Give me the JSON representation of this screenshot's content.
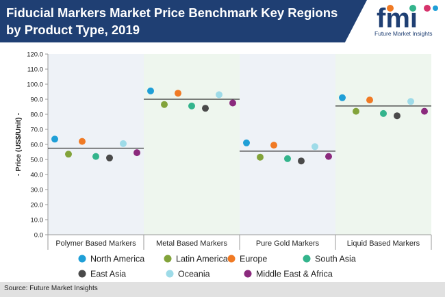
{
  "header": {
    "title": "Fiducial Markers Market Price Benchmark Key Regions by Product Type, 2019",
    "logo_text": "fmi",
    "logo_subtitle": "Future Market Insights",
    "band_color": "#1f3f73"
  },
  "footer": {
    "source": "Source: Future Market Insights"
  },
  "chart_data": {
    "type": "scatter",
    "title": "Fiducial Markers Market Price Benchmark Key Regions by Product Type, 2019",
    "ylabel": "- Price (US$/Unit) -",
    "ylim": [
      0,
      120
    ],
    "yticks": [
      "0.0",
      "10.0",
      "20.0",
      "30.0",
      "40.0",
      "50.0",
      "60.0",
      "70.0",
      "80.0",
      "90.0",
      "100.0",
      "110.0",
      "120.0"
    ],
    "categories": [
      "Polymer Based Markers",
      "Metal Based Markers",
      "Pure Gold Markers",
      "Liquid Based Markers"
    ],
    "panel_colors": [
      "#eef2f7",
      "#eef6ee"
    ],
    "averages": [
      57.5,
      90.0,
      55.5,
      85.5
    ],
    "legend_position": "bottom",
    "grid": false,
    "series": [
      {
        "name": "North America",
        "color": "#1f9fd7",
        "values": [
          63.5,
          95.5,
          61.0,
          91.0
        ]
      },
      {
        "name": "Latin America",
        "color": "#82a33a",
        "values": [
          53.5,
          86.5,
          51.5,
          82.0
        ]
      },
      {
        "name": "Europe",
        "color": "#f07a24",
        "values": [
          62.0,
          94.0,
          59.5,
          89.5
        ]
      },
      {
        "name": "South Asia",
        "color": "#33b48c",
        "values": [
          52.0,
          85.5,
          50.5,
          80.5
        ]
      },
      {
        "name": "East Asia",
        "color": "#4a4a4a",
        "values": [
          51.0,
          84.0,
          49.0,
          79.0
        ]
      },
      {
        "name": "Oceania",
        "color": "#9edbe8",
        "values": [
          60.5,
          93.0,
          58.5,
          88.5
        ]
      },
      {
        "name": "Middle East & Africa",
        "color": "#8b2a7d",
        "values": [
          54.5,
          87.5,
          52.0,
          82.0
        ]
      }
    ]
  }
}
